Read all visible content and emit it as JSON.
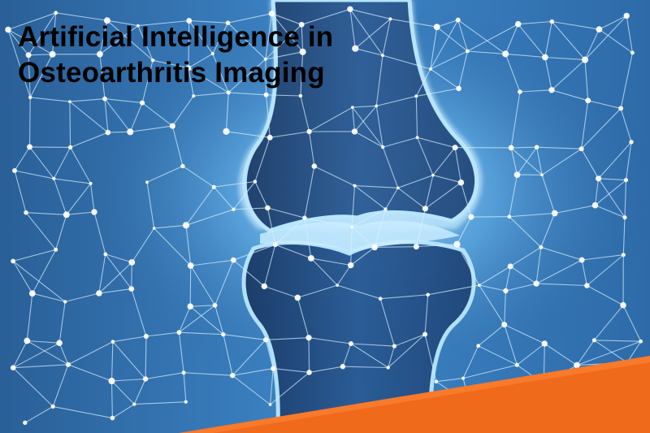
{
  "title": {
    "line1": "Artificial Intelligence in",
    "line2": "Osteoarthritis Imaging"
  },
  "colors": {
    "background_dark": "#1f4f82",
    "background_light": "#5fb0ec",
    "glow": "#9fd8ff",
    "bone_fill": "#1c3f6e",
    "bone_outline": "#b8e6ff",
    "network_line": "#d6efff",
    "network_node": "#ffffff",
    "accent_band": "#f06a1c"
  },
  "icons": [
    "knee-joint-illustration",
    "neural-network-pattern"
  ]
}
